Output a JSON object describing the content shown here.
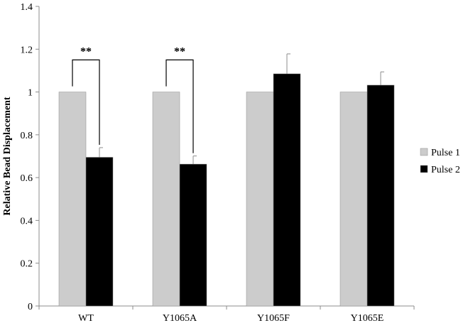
{
  "chart_data": {
    "type": "bar",
    "title": "",
    "xlabel": "",
    "ylabel": "Relative Bead Displacement",
    "ylim": [
      0,
      1.4
    ],
    "yticks": [
      0,
      0.2,
      0.4,
      0.6,
      0.8,
      1,
      1.2,
      1.4
    ],
    "ytick_labels": [
      "0",
      "0.2",
      "0.4",
      "0.6",
      "0.8",
      "1",
      "1.2",
      "1.4"
    ],
    "categories": [
      "WT",
      "Y1065A",
      "Y1065F",
      "Y1065E"
    ],
    "grid": false,
    "legend_position": "right",
    "series": [
      {
        "name": "Pulse 1",
        "color": "#cccccc",
        "values": [
          1,
          1,
          1,
          1
        ],
        "errors": [
          0,
          0,
          0,
          0
        ]
      },
      {
        "name": "Pulse 2",
        "color": "#000000",
        "values": [
          0.695,
          0.663,
          1.085,
          1.032
        ],
        "errors": [
          0.045,
          0.038,
          0.093,
          0.062
        ]
      }
    ],
    "annotations": [
      {
        "category": "WT",
        "text": "**"
      },
      {
        "category": "Y1065A",
        "text": "**"
      }
    ]
  }
}
